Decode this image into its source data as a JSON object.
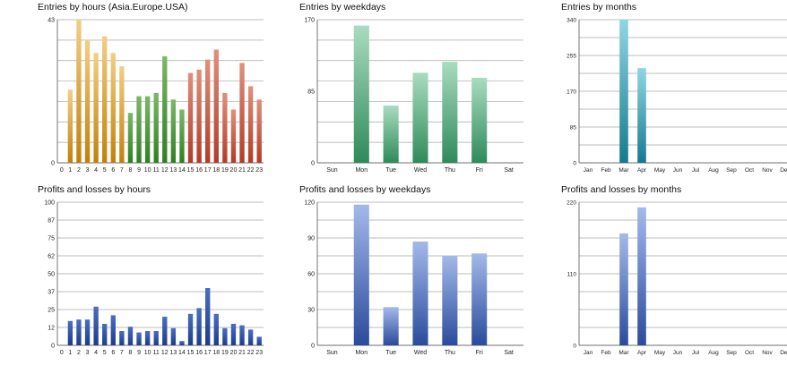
{
  "colors": {
    "grid": "#a8a8a8",
    "axis": "#555555",
    "asia_top": "#f2cf86",
    "asia_bottom": "#c47f0a",
    "europe_top": "#7bb86a",
    "europe_bottom": "#2f7f22",
    "usa_top": "#e0907c",
    "usa_bottom": "#b23b26",
    "weekday_entries_top": "#a9dcbf",
    "weekday_entries_bottom": "#2f8a5a",
    "month_entries_top": "#8fd6e4",
    "month_entries_bottom": "#16798f",
    "profit_hours_top": "#4a6fc0",
    "profit_hours_bottom": "#1c3c8c",
    "profit_top": "#a3b9ea",
    "profit_bottom": "#2a4b9c"
  },
  "chart_data": [
    {
      "id": "entries_hours",
      "type": "bar",
      "title": "Entries by hours (Asia.Europe.USA)",
      "categories": [
        "0",
        "1",
        "2",
        "3",
        "4",
        "5",
        "6",
        "7",
        "8",
        "9",
        "10",
        "11",
        "12",
        "13",
        "14",
        "15",
        "16",
        "17",
        "18",
        "19",
        "20",
        "21",
        "22",
        "23"
      ],
      "values": [
        0,
        22,
        43,
        37,
        33,
        38,
        33,
        29,
        15,
        20,
        20,
        21,
        32,
        19,
        16,
        27,
        28,
        31,
        34,
        21,
        16,
        30,
        23,
        19
      ],
      "sessions": [
        "asia",
        "asia",
        "asia",
        "asia",
        "asia",
        "asia",
        "asia",
        "asia",
        "europe",
        "europe",
        "europe",
        "europe",
        "europe",
        "europe",
        "europe",
        "usa",
        "usa",
        "usa",
        "usa",
        "usa",
        "usa",
        "usa",
        "usa",
        "usa"
      ],
      "yticks": [
        "0",
        "43"
      ],
      "ylim": [
        0,
        43
      ],
      "grid_count": 7
    },
    {
      "id": "entries_weekdays",
      "type": "bar",
      "title": "Entries by weekdays",
      "categories": [
        "Sun",
        "Mon",
        "Tue",
        "Wed",
        "Thu",
        "Fri",
        "Sat"
      ],
      "values": [
        0,
        163,
        68,
        107,
        120,
        101,
        0
      ],
      "yticks": [
        "0",
        "85",
        "170"
      ],
      "ylim": [
        0,
        170
      ],
      "grid_count": 7
    },
    {
      "id": "entries_months",
      "type": "bar",
      "title": "Entries by months",
      "categories": [
        "Jan",
        "Feb",
        "Mar",
        "Apr",
        "May",
        "Jun",
        "Jul",
        "Aug",
        "Sep",
        "Oct",
        "Nov",
        "Dec"
      ],
      "values": [
        0,
        0,
        340,
        225,
        0,
        0,
        0,
        0,
        0,
        0,
        0,
        0
      ],
      "yticks": [
        "0",
        "85",
        "170",
        "255",
        "340"
      ],
      "ylim": [
        0,
        340
      ],
      "grid_count": 8
    },
    {
      "id": "profits_hours",
      "type": "bar",
      "title": "Profits and losses by hours",
      "categories": [
        "0",
        "1",
        "2",
        "3",
        "4",
        "5",
        "6",
        "7",
        "8",
        "9",
        "10",
        "11",
        "12",
        "13",
        "14",
        "15",
        "16",
        "17",
        "18",
        "19",
        "20",
        "21",
        "22",
        "23"
      ],
      "values": [
        0,
        17,
        18,
        18,
        27,
        15,
        21,
        10,
        13,
        9,
        10,
        10,
        20,
        12,
        3,
        22,
        26,
        40,
        22,
        12,
        15,
        14,
        11,
        6
      ],
      "yticks": [
        "0",
        "12",
        "25",
        "37",
        "50",
        "62",
        "75",
        "87",
        "100"
      ],
      "ylim": [
        0,
        100
      ],
      "grid_count": 8
    },
    {
      "id": "profits_weekdays",
      "type": "bar",
      "title": "Profits and losses by weekdays",
      "categories": [
        "Sun",
        "Mon",
        "Tue",
        "Wed",
        "Thu",
        "Fri",
        "Sat"
      ],
      "values": [
        0,
        118,
        32,
        87,
        75,
        77,
        0
      ],
      "yticks": [
        "0",
        "30",
        "60",
        "90",
        "120"
      ],
      "ylim": [
        0,
        120
      ],
      "grid_count": 8
    },
    {
      "id": "profits_months",
      "type": "bar",
      "title": "Profits and losses by months",
      "categories": [
        "Jan",
        "Feb",
        "Mar",
        "Apr",
        "May",
        "Jun",
        "Jul",
        "Aug",
        "Sep",
        "Oct",
        "Nov",
        "Dec"
      ],
      "values": [
        0,
        0,
        172,
        212,
        0,
        0,
        0,
        0,
        0,
        0,
        0,
        0
      ],
      "yticks": [
        "0",
        "110",
        "220"
      ],
      "ylim": [
        0,
        220
      ],
      "grid_count": 8
    }
  ]
}
